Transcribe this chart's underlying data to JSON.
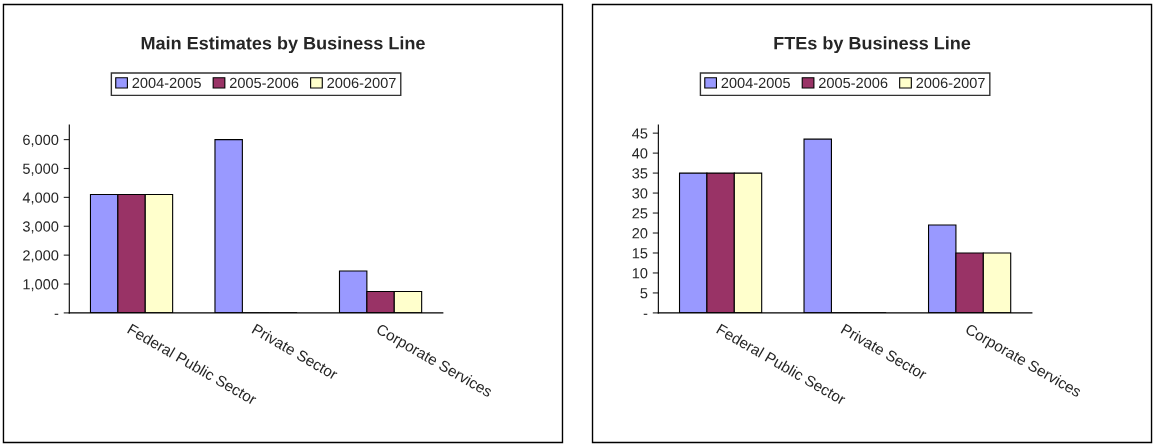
{
  "chart_data": [
    {
      "type": "bar",
      "title": "Main Estimates by Business Line",
      "categories": [
        "Federal Public Sector",
        "Private Sector",
        "Corporate Services"
      ],
      "series": [
        {
          "name": "2004-2005",
          "color": "#9999ff",
          "values": [
            4100,
            6000,
            1450
          ]
        },
        {
          "name": "2005-2006",
          "color": "#993366",
          "values": [
            4100,
            0,
            740
          ]
        },
        {
          "name": "2006-2007",
          "color": "#ffffcc",
          "values": [
            4100,
            0,
            740
          ]
        }
      ],
      "ylim": [
        0,
        6500
      ],
      "yticks": [
        {
          "value": 0,
          "label": "-"
        },
        {
          "value": 1000,
          "label": "1,000"
        },
        {
          "value": 2000,
          "label": "2,000"
        },
        {
          "value": 3000,
          "label": "3,000"
        },
        {
          "value": 4000,
          "label": "4,000"
        },
        {
          "value": 5000,
          "label": "5,000"
        },
        {
          "value": 6000,
          "label": "6,000"
        }
      ],
      "legend": "top",
      "grid": false
    },
    {
      "type": "bar",
      "title": "FTEs by Business Line",
      "categories": [
        "Federal Public Sector",
        "Private Sector",
        "Corporate Services"
      ],
      "series": [
        {
          "name": "2004-2005",
          "color": "#9999ff",
          "values": [
            35,
            43.5,
            22
          ]
        },
        {
          "name": "2005-2006",
          "color": "#993366",
          "values": [
            35,
            0,
            15
          ]
        },
        {
          "name": "2006-2007",
          "color": "#ffffcc",
          "values": [
            35,
            0,
            15
          ]
        }
      ],
      "ylim": [
        0,
        47
      ],
      "yticks": [
        {
          "value": 0,
          "label": "-"
        },
        5,
        10,
        15,
        20,
        25,
        30,
        35,
        40,
        45
      ],
      "legend": "top",
      "grid": false
    }
  ]
}
